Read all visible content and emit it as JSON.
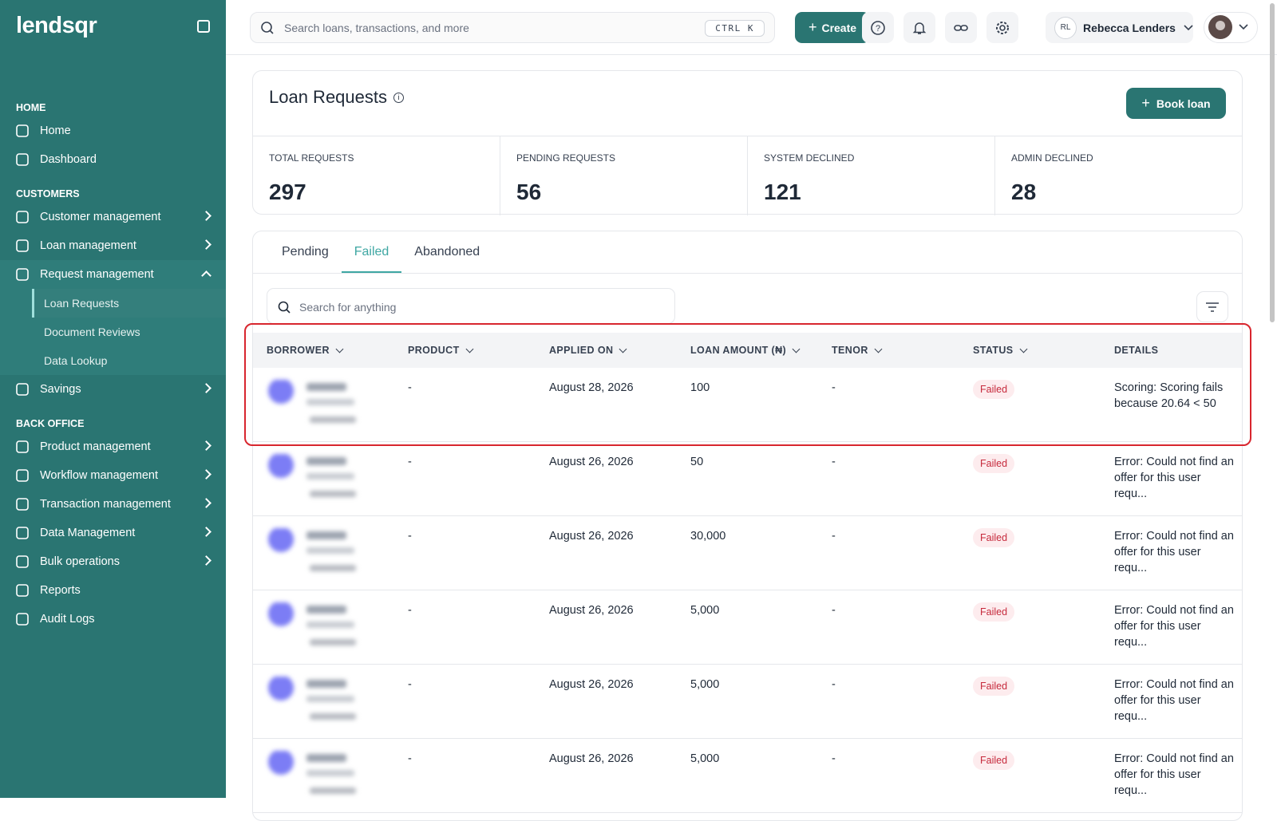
{
  "sidebar": {
    "logo": "lendsqr",
    "sections": [
      {
        "title": "HOME",
        "items": [
          {
            "label": "Home"
          },
          {
            "label": "Dashboard"
          }
        ]
      },
      {
        "title": "CUSTOMERS",
        "items": [
          {
            "label": "Customer management",
            "expandable": true
          },
          {
            "label": "Loan management",
            "expandable": true
          },
          {
            "label": "Request management",
            "expandable": true,
            "open": true,
            "children": [
              {
                "label": "Loan Requests",
                "active": true
              },
              {
                "label": "Document Reviews"
              },
              {
                "label": "Data Lookup"
              }
            ]
          },
          {
            "label": "Savings",
            "expandable": true
          }
        ]
      },
      {
        "title": "BACK OFFICE",
        "items": [
          {
            "label": "Product management",
            "expandable": true
          },
          {
            "label": "Workflow management",
            "expandable": true
          },
          {
            "label": "Transaction management",
            "expandable": true
          },
          {
            "label": "Data Management",
            "expandable": true
          },
          {
            "label": "Bulk operations",
            "expandable": true
          },
          {
            "label": "Reports"
          },
          {
            "label": "Audit Logs"
          }
        ]
      }
    ]
  },
  "topbar": {
    "search_placeholder": "Search loans, transactions, and more",
    "shortcut": "CTRL K",
    "create": "Create",
    "user_initials": "RL",
    "user_name": "Rebecca Lenders"
  },
  "header": {
    "title": "Loan Requests",
    "book_button": "Book loan",
    "stats": [
      {
        "label": "TOTAL REQUESTS",
        "value": 297
      },
      {
        "label": "PENDING REQUESTS",
        "value": 56
      },
      {
        "label": "SYSTEM DECLINED",
        "value": 121
      },
      {
        "label": "ADMIN DECLINED",
        "value": 28
      }
    ]
  },
  "tabs": [
    {
      "label": "Pending"
    },
    {
      "label": "Failed",
      "active": true
    },
    {
      "label": "Abandoned"
    }
  ],
  "table": {
    "search_placeholder": "Search for anything",
    "columns": [
      {
        "label": "BORROWER",
        "sortable": true
      },
      {
        "label": "PRODUCT",
        "sortable": true
      },
      {
        "label": "APPLIED ON",
        "sortable": true
      },
      {
        "label": "LOAN AMOUNT (₦)",
        "sortable": true
      },
      {
        "label": "TENOR",
        "sortable": true
      },
      {
        "label": "STATUS",
        "sortable": true
      },
      {
        "label": "DETAILS"
      }
    ],
    "rows": [
      {
        "product": "-",
        "applied_on": "August 28, 2026",
        "amount": "100",
        "tenor": "-",
        "status": "Failed",
        "details": "Scoring: Scoring fails because 20.64 < 50"
      },
      {
        "product": "-",
        "applied_on": "August 26, 2026",
        "amount": "50",
        "tenor": "-",
        "status": "Failed",
        "details": "Error: Could not find an offer for this user requ..."
      },
      {
        "product": "-",
        "applied_on": "August 26, 2026",
        "amount": "30,000",
        "tenor": "-",
        "status": "Failed",
        "details": "Error: Could not find an offer for this user requ..."
      },
      {
        "product": "-",
        "applied_on": "August 26, 2026",
        "amount": "5,000",
        "tenor": "-",
        "status": "Failed",
        "details": "Error: Could not find an offer for this user requ..."
      },
      {
        "product": "-",
        "applied_on": "August 26, 2026",
        "amount": "5,000",
        "tenor": "-",
        "status": "Failed",
        "details": "Error: Could not find an offer for this user requ..."
      },
      {
        "product": "-",
        "applied_on": "August 26, 2026",
        "amount": "5,000",
        "tenor": "-",
        "status": "Failed",
        "details": "Error: Could not find an offer for this user requ..."
      }
    ]
  }
}
